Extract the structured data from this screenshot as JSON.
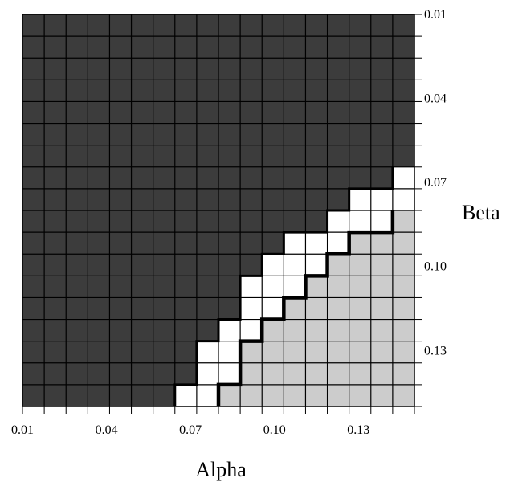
{
  "chart_data": {
    "type": "heatmap",
    "xlabel": "Alpha",
    "ylabel": "Beta",
    "x_range": [
      0.01,
      0.15
    ],
    "y_range": [
      0.01,
      0.15
    ],
    "grid_step": 0.0075,
    "y_axis_position": "right",
    "y_direction": "top-to-bottom",
    "x_ticks": [
      0.01,
      0.04,
      0.07,
      0.1,
      0.13
    ],
    "x_tick_labels": [
      "0.01",
      "0.04",
      "0.07",
      "0.10",
      "0.13"
    ],
    "y_ticks": [
      0.01,
      0.04,
      0.07,
      0.1,
      0.13
    ],
    "y_tick_labels": [
      "0.01",
      "0.04",
      "0.07",
      "0.10",
      "0.13"
    ],
    "colors": {
      "dark_region": "#3c3c3c",
      "white_band": "#ffffff",
      "light_region": "#cccccc",
      "grid_lines": "#000000"
    },
    "region_rows": [
      {
        "row": 0,
        "dark_cols": 18,
        "white_cols": 0
      },
      {
        "row": 1,
        "dark_cols": 18,
        "white_cols": 0
      },
      {
        "row": 2,
        "dark_cols": 18,
        "white_cols": 0
      },
      {
        "row": 3,
        "dark_cols": 18,
        "white_cols": 0
      },
      {
        "row": 4,
        "dark_cols": 18,
        "white_cols": 0
      },
      {
        "row": 5,
        "dark_cols": 18,
        "white_cols": 0
      },
      {
        "row": 6,
        "dark_cols": 18,
        "white_cols": 0
      },
      {
        "row": 7,
        "dark_cols": 17,
        "white_cols": 1
      },
      {
        "row": 8,
        "dark_cols": 15,
        "white_cols": 3
      },
      {
        "row": 9,
        "dark_cols": 14,
        "white_cols": 3
      },
      {
        "row": 10,
        "dark_cols": 12,
        "white_cols": 3
      },
      {
        "row": 11,
        "dark_cols": 11,
        "white_cols": 3
      },
      {
        "row": 12,
        "dark_cols": 10,
        "white_cols": 3
      },
      {
        "row": 13,
        "dark_cols": 10,
        "white_cols": 2
      },
      {
        "row": 14,
        "dark_cols": 9,
        "white_cols": 2
      },
      {
        "row": 15,
        "dark_cols": 8,
        "white_cols": 2
      },
      {
        "row": 16,
        "dark_cols": 8,
        "white_cols": 2
      },
      {
        "row": 17,
        "dark_cols": 7,
        "white_cols": 2
      }
    ]
  }
}
